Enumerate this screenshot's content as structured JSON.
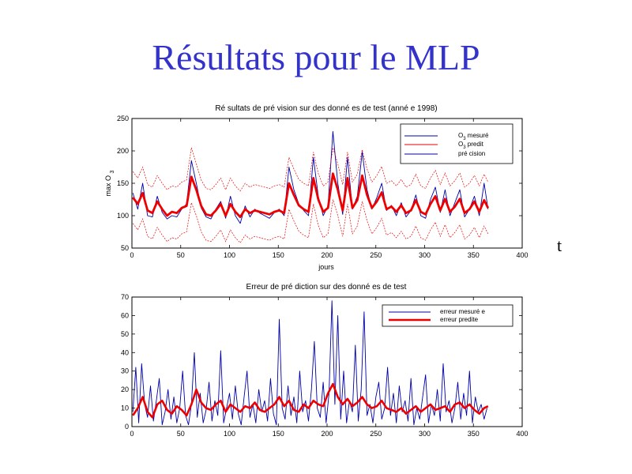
{
  "slide": {
    "title": "Résultats pour le MLP",
    "side_label": "t"
  },
  "chart_data": [
    {
      "type": "line",
      "title": "Ré sultats de pré vision sur des donné es de test (anné e 1998)",
      "xlabel": "jours",
      "ylabel": "max O3",
      "xlim": [
        0,
        400
      ],
      "ylim": [
        50,
        250
      ],
      "xticks": [
        0,
        50,
        100,
        150,
        200,
        250,
        300,
        350,
        400
      ],
      "yticks": [
        50,
        100,
        150,
        200,
        250
      ],
      "legend_position": "top-right",
      "series": [
        {
          "name": "O3 mesuré",
          "color": "#0000aa",
          "width": 0.9,
          "dash": "",
          "x": [
            1,
            6,
            11,
            16,
            21,
            26,
            31,
            36,
            41,
            46,
            51,
            56,
            61,
            66,
            71,
            76,
            81,
            86,
            91,
            96,
            101,
            106,
            111,
            116,
            121,
            126,
            131,
            136,
            141,
            146,
            151,
            156,
            161,
            166,
            171,
            176,
            181,
            186,
            191,
            196,
            201,
            206,
            211,
            216,
            221,
            226,
            231,
            236,
            241,
            246,
            251,
            256,
            261,
            266,
            271,
            276,
            281,
            286,
            291,
            296,
            301,
            306,
            311,
            316,
            321,
            326,
            331,
            336,
            341,
            346,
            351,
            356,
            361,
            365
          ],
          "values": [
            135,
            110,
            150,
            100,
            98,
            130,
            105,
            95,
            100,
            98,
            110,
            118,
            185,
            150,
            112,
            98,
            95,
            110,
            122,
            96,
            130,
            100,
            88,
            115,
            98,
            110,
            104,
            100,
            96,
            105,
            110,
            100,
            175,
            140,
            118,
            108,
            100,
            190,
            130,
            100,
            115,
            230,
            150,
            102,
            190,
            110,
            130,
            198,
            140,
            110,
            128,
            150,
            108,
            116,
            100,
            120,
            98,
            108,
            132,
            100,
            96,
            125,
            144,
            105,
            140,
            100,
            120,
            140,
            98,
            110,
            130,
            100,
            150,
            110
          ]
        },
        {
          "name": "O3 predit",
          "color": "#ee0000",
          "width": 2.8,
          "dash": "",
          "x": [
            1,
            6,
            11,
            16,
            21,
            26,
            31,
            36,
            41,
            46,
            51,
            56,
            61,
            66,
            71,
            76,
            81,
            86,
            91,
            96,
            101,
            106,
            111,
            116,
            121,
            126,
            131,
            136,
            141,
            146,
            151,
            156,
            161,
            166,
            171,
            176,
            181,
            186,
            191,
            196,
            201,
            206,
            211,
            216,
            221,
            226,
            231,
            236,
            241,
            246,
            251,
            256,
            261,
            266,
            271,
            276,
            281,
            286,
            291,
            296,
            301,
            306,
            311,
            316,
            321,
            326,
            331,
            336,
            341,
            346,
            351,
            356,
            361,
            365
          ],
          "values": [
            128,
            118,
            135,
            108,
            104,
            122,
            110,
            100,
            106,
            104,
            112,
            115,
            160,
            140,
            115,
            102,
            100,
            108,
            118,
            100,
            118,
            106,
            98,
            110,
            104,
            108,
            106,
            104,
            102,
            106,
            108,
            104,
            150,
            132,
            116,
            110,
            106,
            158,
            125,
            106,
            112,
            165,
            140,
            108,
            158,
            112,
            124,
            162,
            132,
            112,
            122,
            136,
            110,
            114,
            106,
            116,
            104,
            108,
            124,
            106,
            102,
            118,
            130,
            108,
            126,
            106,
            114,
            126,
            104,
            110,
            122,
            106,
            124,
            112
          ]
        },
        {
          "name": "pré cision",
          "color": "#ee0000",
          "width": 0.7,
          "dash": "2,1.5",
          "upper": [
            168,
            158,
            175,
            148,
            144,
            162,
            150,
            140,
            146,
            144,
            152,
            155,
            205,
            180,
            155,
            142,
            140,
            148,
            158,
            140,
            158,
            146,
            138,
            150,
            144,
            148,
            146,
            144,
            142,
            146,
            148,
            144,
            190,
            172,
            156,
            150,
            146,
            198,
            165,
            146,
            152,
            205,
            180,
            148,
            198,
            152,
            164,
            202,
            172,
            152,
            162,
            176,
            150,
            154,
            146,
            156,
            144,
            148,
            164,
            146,
            142,
            158,
            170,
            148,
            166,
            146,
            154,
            166,
            144,
            150,
            162,
            146,
            164,
            152
          ],
          "lower": [
            88,
            78,
            95,
            68,
            64,
            82,
            70,
            60,
            66,
            64,
            72,
            75,
            120,
            100,
            75,
            62,
            60,
            68,
            78,
            60,
            78,
            66,
            58,
            70,
            64,
            68,
            66,
            64,
            62,
            66,
            68,
            64,
            110,
            92,
            76,
            70,
            66,
            118,
            85,
            66,
            72,
            125,
            100,
            68,
            118,
            72,
            84,
            122,
            92,
            72,
            82,
            96,
            70,
            74,
            66,
            76,
            64,
            68,
            84,
            66,
            62,
            78,
            90,
            68,
            86,
            66,
            74,
            86,
            64,
            70,
            82,
            66,
            84,
            72
          ]
        }
      ]
    },
    {
      "type": "line",
      "title": "Erreur de pré diction sur des donné es de test",
      "xlabel": "",
      "ylabel": "",
      "xlim": [
        0,
        400
      ],
      "ylim": [
        0,
        70
      ],
      "xticks": [
        0,
        50,
        100,
        150,
        200,
        250,
        300,
        350,
        400
      ],
      "yticks": [
        0,
        10,
        20,
        30,
        40,
        50,
        60,
        70
      ],
      "legend_position": "top-right",
      "series": [
        {
          "name": "erreur mesuré e",
          "color": "#0000aa",
          "width": 0.9,
          "x": [
            1,
            4,
            7,
            10,
            13,
            16,
            19,
            22,
            25,
            28,
            31,
            34,
            37,
            40,
            43,
            46,
            49,
            52,
            55,
            58,
            61,
            64,
            67,
            70,
            73,
            76,
            79,
            82,
            85,
            88,
            91,
            94,
            97,
            100,
            103,
            106,
            109,
            112,
            115,
            118,
            121,
            124,
            127,
            130,
            133,
            136,
            139,
            142,
            145,
            148,
            151,
            154,
            157,
            160,
            163,
            166,
            169,
            172,
            175,
            178,
            181,
            184,
            187,
            190,
            193,
            196,
            199,
            202,
            205,
            208,
            211,
            214,
            217,
            220,
            223,
            226,
            229,
            232,
            235,
            238,
            241,
            244,
            247,
            250,
            253,
            256,
            259,
            262,
            265,
            268,
            271,
            274,
            277,
            280,
            283,
            286,
            289,
            292,
            295,
            298,
            301,
            304,
            307,
            310,
            313,
            316,
            319,
            322,
            325,
            328,
            331,
            334,
            337,
            340,
            343,
            346,
            349,
            352,
            355,
            358,
            361,
            364
          ],
          "values": [
            8,
            32,
            2,
            34,
            12,
            5,
            22,
            3,
            14,
            26,
            1,
            8,
            20,
            4,
            16,
            2,
            10,
            30,
            6,
            1,
            12,
            40,
            5,
            18,
            2,
            9,
            24,
            3,
            14,
            6,
            41,
            2,
            10,
            18,
            4,
            22,
            7,
            1,
            16,
            30,
            5,
            12,
            2,
            20,
            8,
            14,
            3,
            26,
            7,
            1,
            58,
            10,
            4,
            22,
            6,
            16,
            2,
            30,
            8,
            14,
            3,
            20,
            46,
            10,
            5,
            24,
            2,
            18,
            68,
            12,
            60,
            4,
            30,
            2,
            14,
            8,
            44,
            3,
            20,
            62,
            6,
            12,
            2,
            16,
            24,
            4,
            10,
            32,
            6,
            18,
            2,
            22,
            8,
            14,
            3,
            26,
            1,
            10,
            4,
            16,
            28,
            2,
            12,
            6,
            20,
            3,
            34,
            8,
            14,
            2,
            10,
            24,
            4,
            18,
            6,
            30,
            2,
            16,
            8,
            12,
            4,
            10
          ]
        },
        {
          "name": "erreur predite",
          "color": "#ee0000",
          "width": 2.6,
          "x": [
            1,
            6,
            11,
            16,
            21,
            26,
            31,
            36,
            41,
            46,
            51,
            56,
            61,
            66,
            71,
            76,
            81,
            86,
            91,
            96,
            101,
            106,
            111,
            116,
            121,
            126,
            131,
            136,
            141,
            146,
            151,
            156,
            161,
            166,
            171,
            176,
            181,
            186,
            191,
            196,
            201,
            206,
            211,
            216,
            221,
            226,
            231,
            236,
            241,
            246,
            251,
            256,
            261,
            266,
            271,
            276,
            281,
            286,
            291,
            296,
            301,
            306,
            311,
            316,
            321,
            326,
            331,
            336,
            341,
            346,
            351,
            356,
            361,
            365
          ],
          "values": [
            6,
            10,
            16,
            8,
            5,
            12,
            14,
            9,
            7,
            11,
            9,
            6,
            12,
            20,
            13,
            10,
            9,
            12,
            14,
            8,
            12,
            10,
            8,
            11,
            10,
            13,
            9,
            8,
            10,
            12,
            16,
            11,
            14,
            9,
            8,
            12,
            10,
            14,
            12,
            11,
            18,
            23,
            16,
            12,
            15,
            11,
            13,
            16,
            12,
            10,
            11,
            14,
            10,
            9,
            8,
            10,
            7,
            9,
            11,
            8,
            10,
            12,
            9,
            10,
            11,
            8,
            12,
            13,
            10,
            12,
            9,
            7,
            10,
            11
          ]
        }
      ]
    }
  ]
}
